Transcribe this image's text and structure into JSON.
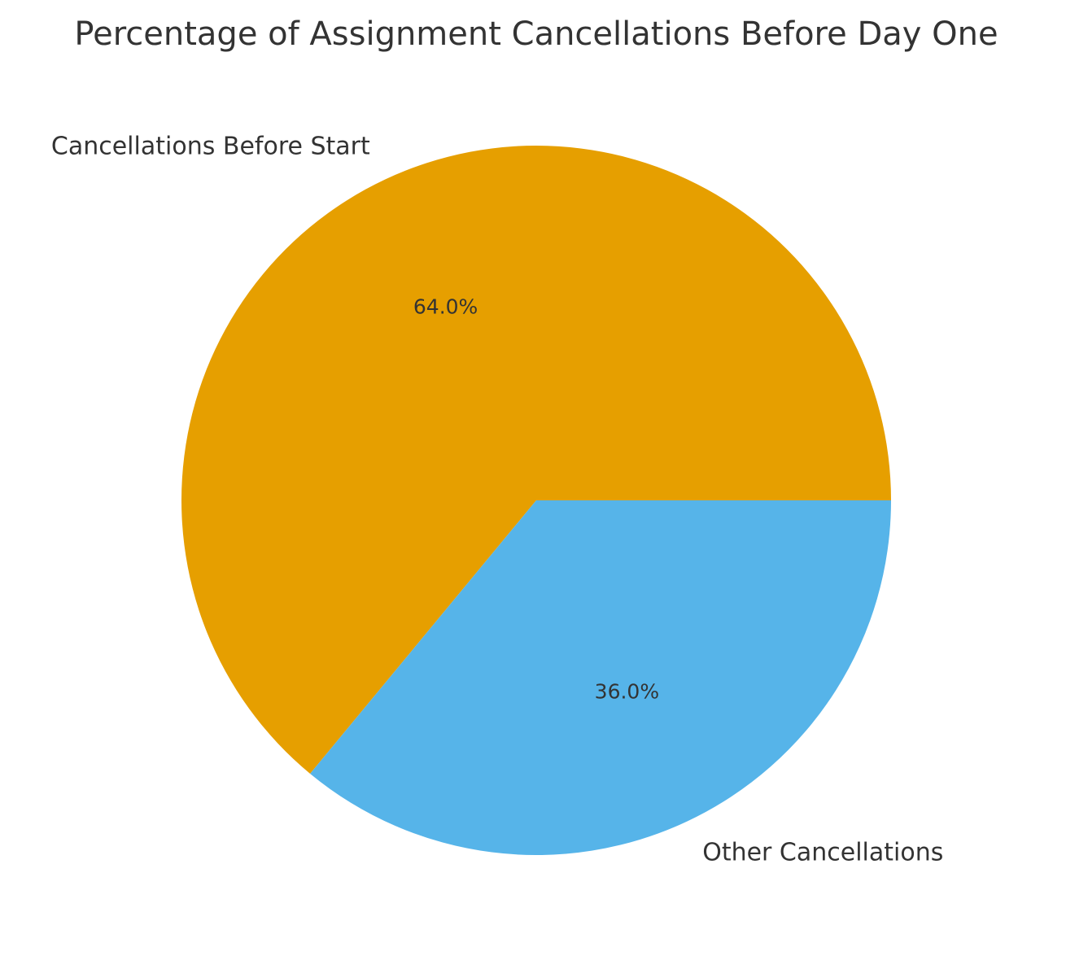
{
  "chart_data": {
    "type": "pie",
    "title": "Percentage of Assignment Cancellations Before Day One",
    "start_angle_deg": 0,
    "direction": "counterclockwise",
    "slices": [
      {
        "label": "Cancellations Before Start",
        "value": 64.0,
        "pct_label": "64.0%",
        "color": "#E69F00"
      },
      {
        "label": "Other Cancellations",
        "value": 36.0,
        "pct_label": "36.0%",
        "color": "#56B4E9"
      }
    ]
  }
}
